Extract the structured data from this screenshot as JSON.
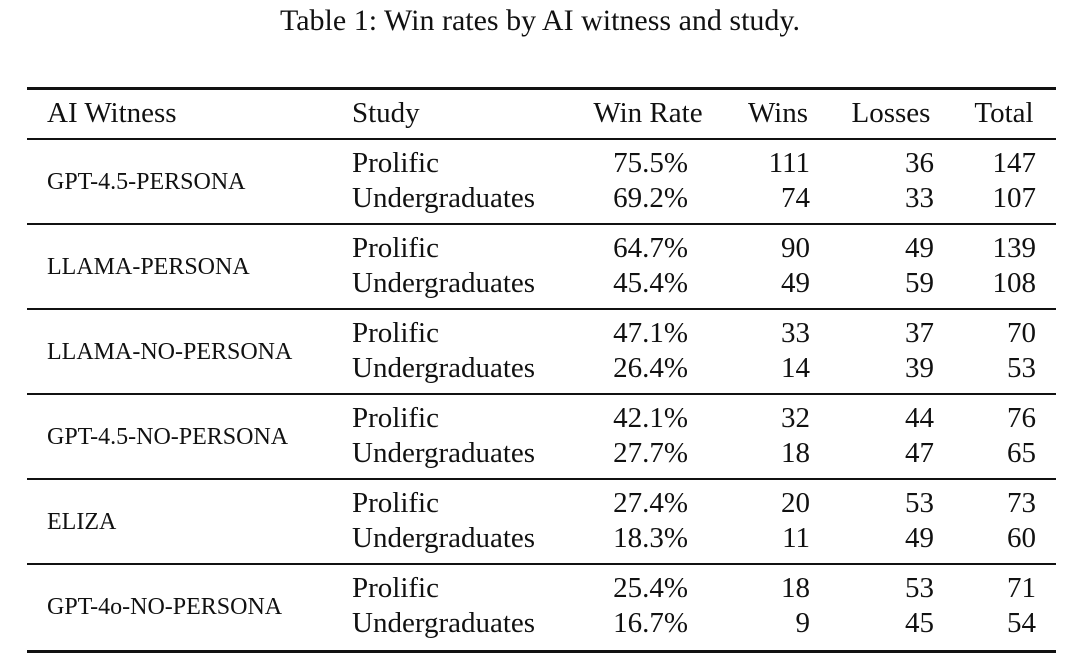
{
  "caption": "Table 1: Win rates by AI witness and study.",
  "columns": [
    "AI Witness",
    "Study",
    "Win Rate",
    "Wins",
    "Losses",
    "Total"
  ],
  "groups": [
    {
      "witness": "GPT-4.5-PERSONA",
      "rows": [
        {
          "study": "Prolific",
          "win_rate": "75.5%",
          "wins": "111",
          "losses": "36",
          "total": "147"
        },
        {
          "study": "Undergraduates",
          "win_rate": "69.2%",
          "wins": "74",
          "losses": "33",
          "total": "107"
        }
      ]
    },
    {
      "witness": "LLAMA-PERSONA",
      "rows": [
        {
          "study": "Prolific",
          "win_rate": "64.7%",
          "wins": "90",
          "losses": "49",
          "total": "139"
        },
        {
          "study": "Undergraduates",
          "win_rate": "45.4%",
          "wins": "49",
          "losses": "59",
          "total": "108"
        }
      ]
    },
    {
      "witness": "LLAMA-NO-PERSONA",
      "rows": [
        {
          "study": "Prolific",
          "win_rate": "47.1%",
          "wins": "33",
          "losses": "37",
          "total": "70"
        },
        {
          "study": "Undergraduates",
          "win_rate": "26.4%",
          "wins": "14",
          "losses": "39",
          "total": "53"
        }
      ]
    },
    {
      "witness": "GPT-4.5-NO-PERSONA",
      "rows": [
        {
          "study": "Prolific",
          "win_rate": "42.1%",
          "wins": "32",
          "losses": "44",
          "total": "76"
        },
        {
          "study": "Undergraduates",
          "win_rate": "27.7%",
          "wins": "18",
          "losses": "47",
          "total": "65"
        }
      ]
    },
    {
      "witness": "ELIZA",
      "rows": [
        {
          "study": "Prolific",
          "win_rate": "27.4%",
          "wins": "20",
          "losses": "53",
          "total": "73"
        },
        {
          "study": "Undergraduates",
          "win_rate": "18.3%",
          "wins": "11",
          "losses": "49",
          "total": "60"
        }
      ]
    },
    {
      "witness": "GPT-4o-NO-PERSONA",
      "rows": [
        {
          "study": "Prolific",
          "win_rate": "25.4%",
          "wins": "18",
          "losses": "53",
          "total": "71"
        },
        {
          "study": "Undergraduates",
          "win_rate": "16.7%",
          "wins": "9",
          "losses": "45",
          "total": "54"
        }
      ]
    }
  ]
}
